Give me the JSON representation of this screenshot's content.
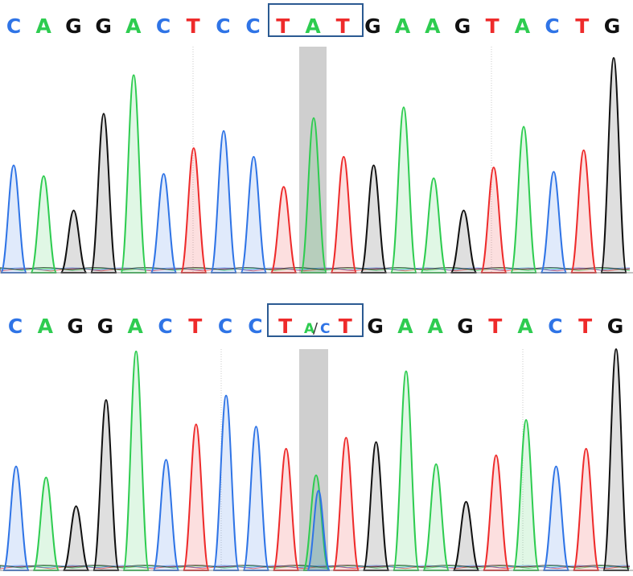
{
  "colors": {
    "A": "#2ecc50",
    "C": "#2f74e6",
    "G": "#111111",
    "T": "#ee2b2b",
    "box": "#2b5a92",
    "highlight": "#cfcfcf"
  },
  "panels": [
    {
      "id": "reference-panel",
      "bases": [
        "C",
        "A",
        "G",
        "G",
        "A",
        "C",
        "T",
        "C",
        "C",
        "T",
        "A",
        "T",
        "G",
        "A",
        "A",
        "G",
        "T",
        "A",
        "C",
        "T",
        "G"
      ],
      "boxed_range": [
        9,
        11
      ],
      "heterozygous": null,
      "peaks": [
        {
          "base": "C",
          "h": 0.5
        },
        {
          "base": "A",
          "h": 0.45
        },
        {
          "base": "G",
          "h": 0.29
        },
        {
          "base": "G",
          "h": 0.74
        },
        {
          "base": "A",
          "h": 0.92
        },
        {
          "base": "C",
          "h": 0.46
        },
        {
          "base": "T",
          "h": 0.58
        },
        {
          "base": "C",
          "h": 0.66
        },
        {
          "base": "C",
          "h": 0.54
        },
        {
          "base": "T",
          "h": 0.4
        },
        {
          "base": "A",
          "h": 0.72
        },
        {
          "base": "T",
          "h": 0.54
        },
        {
          "base": "G",
          "h": 0.5
        },
        {
          "base": "A",
          "h": 0.77
        },
        {
          "base": "A",
          "h": 0.44
        },
        {
          "base": "G",
          "h": 0.29
        },
        {
          "base": "T",
          "h": 0.49
        },
        {
          "base": "A",
          "h": 0.68
        },
        {
          "base": "C",
          "h": 0.47
        },
        {
          "base": "T",
          "h": 0.57
        },
        {
          "base": "G",
          "h": 1.0
        }
      ]
    },
    {
      "id": "variant-panel",
      "bases": [
        "C",
        "A",
        "G",
        "G",
        "A",
        "C",
        "T",
        "C",
        "C",
        "T",
        "A/C",
        "T",
        "G",
        "A",
        "A",
        "G",
        "T",
        "A",
        "C",
        "T",
        "G"
      ],
      "boxed_range": [
        9,
        11
      ],
      "heterozygous": {
        "index": 10,
        "primary": "A",
        "secondary": "C",
        "slash": "/"
      },
      "peaks": [
        {
          "base": "C",
          "h": 0.47
        },
        {
          "base": "A",
          "h": 0.42
        },
        {
          "base": "G",
          "h": 0.29
        },
        {
          "base": "G",
          "h": 0.77
        },
        {
          "base": "A",
          "h": 0.99
        },
        {
          "base": "C",
          "h": 0.5
        },
        {
          "base": "T",
          "h": 0.66
        },
        {
          "base": "C",
          "h": 0.79
        },
        {
          "base": "C",
          "h": 0.65
        },
        {
          "base": "T",
          "h": 0.55
        },
        {
          "base": "A",
          "h": 0.43,
          "second": {
            "base": "C",
            "h": 0.36
          }
        },
        {
          "base": "T",
          "h": 0.6
        },
        {
          "base": "G",
          "h": 0.58
        },
        {
          "base": "A",
          "h": 0.9
        },
        {
          "base": "A",
          "h": 0.48
        },
        {
          "base": "G",
          "h": 0.31
        },
        {
          "base": "T",
          "h": 0.52
        },
        {
          "base": "A",
          "h": 0.68
        },
        {
          "base": "C",
          "h": 0.47
        },
        {
          "base": "T",
          "h": 0.55
        },
        {
          "base": "G",
          "h": 1.0
        }
      ]
    }
  ]
}
